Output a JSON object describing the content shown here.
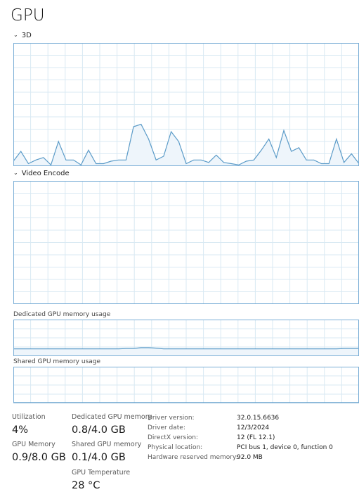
{
  "page": {
    "title": "GPU"
  },
  "engines": [
    {
      "label": "3D",
      "values": [
        4,
        12,
        2,
        5,
        7,
        1,
        20,
        5,
        5,
        1,
        13,
        2,
        2,
        4,
        5,
        5,
        32,
        34,
        22,
        5,
        8,
        28,
        20,
        2,
        5,
        5,
        3,
        9,
        3,
        2,
        1,
        4,
        5,
        13,
        22,
        7,
        29,
        12,
        15,
        5,
        5,
        2,
        2,
        22,
        3,
        10,
        2
      ]
    },
    {
      "label": "Video Encode",
      "values": []
    }
  ],
  "memory_graphs": [
    {
      "label": "Dedicated GPU memory usage",
      "values": [
        20,
        20,
        20,
        20,
        20,
        20,
        20,
        20,
        20,
        20,
        20,
        20,
        20,
        20,
        20,
        21,
        21,
        23,
        23,
        22,
        20,
        20,
        20,
        20,
        20,
        20,
        20,
        20,
        20,
        20,
        20,
        20,
        20,
        20,
        20,
        20,
        20,
        20,
        20,
        20,
        20,
        20,
        20,
        20,
        21,
        21,
        21
      ]
    },
    {
      "label": "Shared GPU memory usage",
      "values": [
        2,
        2,
        2,
        2,
        2,
        2,
        2,
        2,
        2,
        2,
        2,
        2,
        2,
        2,
        2,
        2,
        2,
        2,
        2,
        2,
        2,
        2,
        2,
        2,
        2,
        2,
        2,
        2,
        2,
        2,
        2,
        2,
        2,
        2,
        2,
        2,
        2,
        2,
        2,
        2,
        2,
        2,
        2,
        2,
        2,
        2,
        2
      ]
    }
  ],
  "stats": {
    "utilization": {
      "label": "Utilization",
      "value": "4%"
    },
    "dedicated_gpu_memory": {
      "label": "Dedicated GPU memory",
      "value": "0.8/4.0 GB"
    },
    "gpu_memory": {
      "label": "GPU Memory",
      "value": "0.9/8.0 GB"
    },
    "shared_gpu_memory": {
      "label": "Shared GPU memory",
      "value": "0.1/4.0 GB"
    },
    "gpu_temperature": {
      "label": "GPU Temperature",
      "value": "28 °C"
    }
  },
  "info": [
    {
      "key": "Driver version:",
      "value": "32.0.15.6636"
    },
    {
      "key": "Driver date:",
      "value": "12/3/2024"
    },
    {
      "key": "DirectX version:",
      "value": "12 (FL 12.1)"
    },
    {
      "key": "Physical location:",
      "value": "PCI bus 1, device 0, function 0"
    },
    {
      "key": "Hardware reserved memory:",
      "value": "92.0 MB"
    }
  ],
  "colors": {
    "graph_line": "#5b9bc8",
    "graph_fill": "#eef5fb",
    "grid": "#d9e9f3",
    "border": "#7aaed6"
  }
}
